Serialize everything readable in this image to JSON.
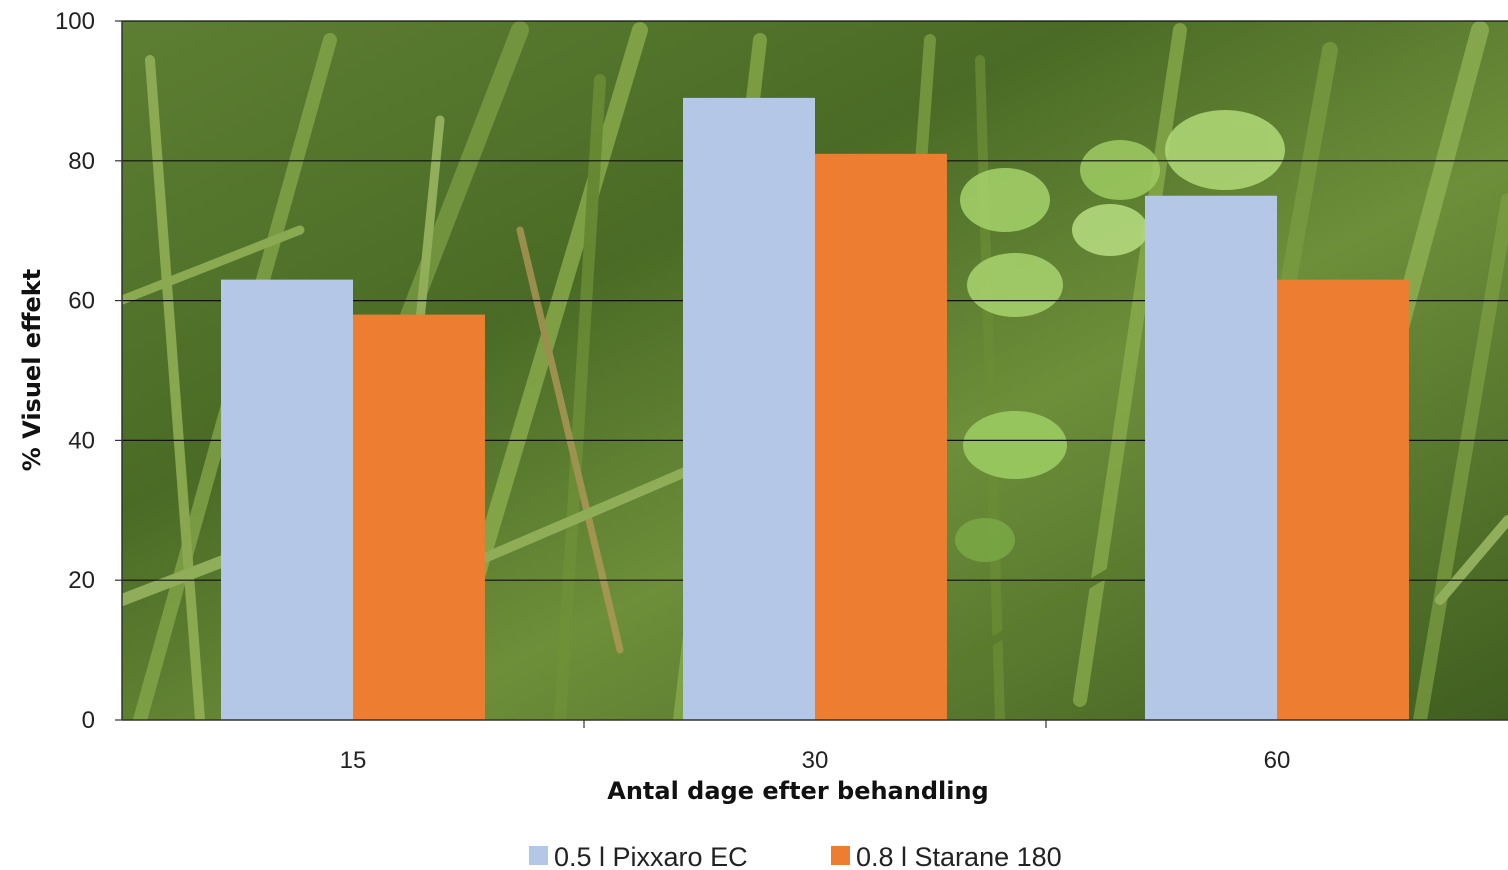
{
  "chart_data": {
    "type": "bar",
    "categories": [
      "15",
      "30",
      "60"
    ],
    "series": [
      {
        "name": "0.5 l Pixxaro EC",
        "values": [
          63,
          89,
          75
        ],
        "color": "#b4c7e7"
      },
      {
        "name": "0.8 l Starane 180",
        "values": [
          58,
          81,
          63
        ],
        "color": "#ed7d31"
      }
    ],
    "xlabel": "Antal dage efter behandling",
    "ylabel": "% Visuel effekt",
    "ylim": [
      0,
      100
    ],
    "yticks": [
      0,
      20,
      40,
      60,
      80,
      100
    ],
    "grid": true,
    "legend_position": "bottom",
    "background": "photo of green weeds and grass"
  }
}
